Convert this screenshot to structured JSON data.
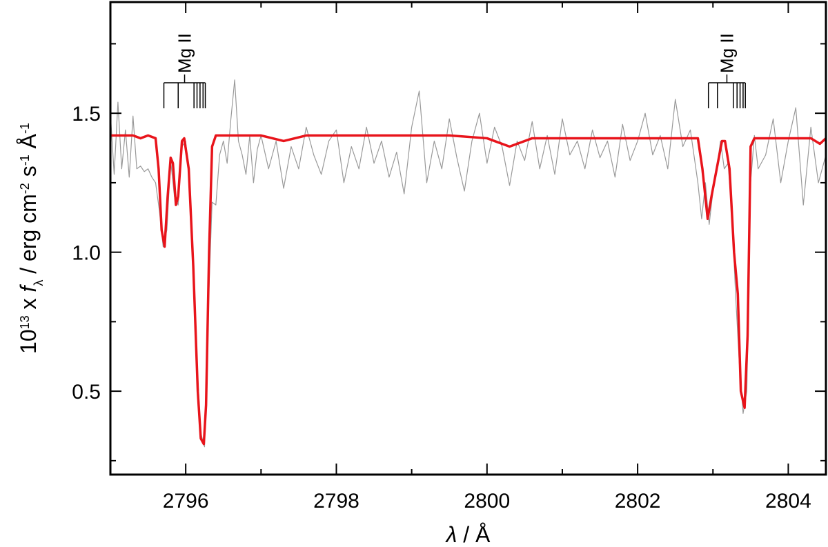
{
  "chart_data": {
    "type": "line",
    "xlabel": [
      {
        "text": "λ",
        "style": "italic"
      },
      {
        "text": " / Å",
        "style": "normal"
      }
    ],
    "ylabel": [
      {
        "text": "10",
        "style": "normal"
      },
      {
        "text": "13",
        "style": "sup"
      },
      {
        "text": " x ",
        "style": "normal"
      },
      {
        "text": "f",
        "style": "italic"
      },
      {
        "text": "λ",
        "style": "sub"
      },
      {
        "text": " / erg cm",
        "style": "normal"
      },
      {
        "text": "-2",
        "style": "sup"
      },
      {
        "text": " s",
        "style": "normal"
      },
      {
        "text": "-1",
        "style": "sup"
      },
      {
        "text": " Å",
        "style": "normal"
      },
      {
        "text": "-1",
        "style": "sup"
      }
    ],
    "xlim": [
      2795,
      2804.5
    ],
    "ylim": [
      0.2,
      1.9
    ],
    "xticks": [
      2796,
      2798,
      2800,
      2802,
      2804
    ],
    "xminorticks": [
      2795,
      2797,
      2799,
      2801,
      2803
    ],
    "yticks": [
      0.5,
      {
        "value": 1,
        "label": "1.0"
      },
      1.5
    ],
    "yminorticks": [
      0.25,
      0.75,
      1.25,
      1.75
    ],
    "series": [
      {
        "color": "#999999",
        "x": [
          2795.0,
          2795.05,
          2795.1,
          2795.15,
          2795.2,
          2795.25,
          2795.3,
          2795.35,
          2795.4,
          2795.45,
          2795.5,
          2795.55,
          2795.6,
          2795.65,
          2795.7,
          2795.75,
          2795.8,
          2795.85,
          2795.9,
          2795.95,
          2796.0,
          2796.05,
          2796.1,
          2796.15,
          2796.2,
          2796.25,
          2796.3,
          2796.35,
          2796.4,
          2796.45,
          2796.5,
          2796.55,
          2796.6,
          2796.65,
          2796.7,
          2796.75,
          2796.8,
          2796.85,
          2796.9,
          2796.95,
          2797.0,
          2797.1,
          2797.2,
          2797.3,
          2797.4,
          2797.5,
          2797.6,
          2797.7,
          2797.8,
          2797.9,
          2798.0,
          2798.1,
          2798.2,
          2798.3,
          2798.4,
          2798.5,
          2798.6,
          2798.7,
          2798.8,
          2798.9,
          2799.0,
          2799.1,
          2799.2,
          2799.3,
          2799.4,
          2799.5,
          2799.6,
          2799.7,
          2799.8,
          2799.9,
          2800.0,
          2800.1,
          2800.2,
          2800.3,
          2800.4,
          2800.5,
          2800.6,
          2800.7,
          2800.8,
          2800.9,
          2801.0,
          2801.1,
          2801.2,
          2801.3,
          2801.4,
          2801.5,
          2801.6,
          2801.7,
          2801.8,
          2801.9,
          2802.0,
          2802.1,
          2802.2,
          2802.3,
          2802.4,
          2802.5,
          2802.6,
          2802.7,
          2802.8,
          2802.85,
          2802.9,
          2802.95,
          2803.0,
          2803.05,
          2803.1,
          2803.15,
          2803.2,
          2803.25,
          2803.3,
          2803.35,
          2803.4,
          2803.45,
          2803.5,
          2803.55,
          2803.6,
          2803.7,
          2803.8,
          2803.9,
          2804.0,
          2804.1,
          2804.2,
          2804.3,
          2804.4,
          2804.5
        ],
        "values": [
          1.5,
          1.28,
          1.54,
          1.3,
          1.44,
          1.27,
          1.49,
          1.3,
          1.31,
          1.29,
          1.3,
          1.27,
          1.25,
          1.15,
          1.02,
          1.08,
          1.33,
          1.2,
          1.17,
          1.38,
          1.4,
          1.25,
          0.95,
          0.6,
          0.35,
          0.3,
          0.8,
          1.18,
          1.17,
          1.35,
          1.4,
          1.32,
          1.48,
          1.62,
          1.4,
          1.35,
          1.28,
          1.42,
          1.25,
          1.37,
          1.42,
          1.3,
          1.4,
          1.23,
          1.38,
          1.3,
          1.45,
          1.35,
          1.28,
          1.4,
          1.44,
          1.25,
          1.38,
          1.3,
          1.45,
          1.32,
          1.4,
          1.27,
          1.36,
          1.21,
          1.45,
          1.58,
          1.25,
          1.4,
          1.3,
          1.48,
          1.34,
          1.22,
          1.4,
          1.5,
          1.32,
          1.45,
          1.38,
          1.24,
          1.4,
          1.33,
          1.47,
          1.3,
          1.42,
          1.28,
          1.48,
          1.35,
          1.4,
          1.3,
          1.44,
          1.34,
          1.4,
          1.27,
          1.46,
          1.33,
          1.4,
          1.5,
          1.35,
          1.42,
          1.3,
          1.55,
          1.38,
          1.44,
          1.25,
          1.12,
          1.25,
          1.1,
          1.22,
          1.3,
          1.4,
          1.3,
          1.32,
          1.15,
          0.85,
          0.6,
          0.42,
          0.5,
          1.25,
          1.42,
          1.3,
          1.35,
          1.48,
          1.25,
          1.4,
          1.52,
          1.17,
          1.45,
          1.25,
          1.35
        ]
      },
      {
        "color": "#e8141b",
        "x": [
          2795.0,
          2795.3,
          2795.4,
          2795.5,
          2795.6,
          2795.64,
          2795.68,
          2795.72,
          2795.76,
          2795.8,
          2795.83,
          2795.87,
          2795.9,
          2795.95,
          2795.98,
          2796.04,
          2796.1,
          2796.16,
          2796.2,
          2796.24,
          2796.27,
          2796.31,
          2796.35,
          2796.4,
          2797.0,
          2797.3,
          2797.6,
          2799.5,
          2800.0,
          2800.3,
          2800.6,
          2802.8,
          2802.86,
          2802.93,
          2802.98,
          2803.05,
          2803.12,
          2803.16,
          2803.22,
          2803.28,
          2803.33,
          2803.37,
          2803.42,
          2803.46,
          2803.5,
          2803.55,
          2804.3,
          2804.42,
          2804.5
        ],
        "values": [
          1.42,
          1.42,
          1.41,
          1.42,
          1.41,
          1.3,
          1.08,
          1.02,
          1.2,
          1.34,
          1.32,
          1.17,
          1.2,
          1.4,
          1.41,
          1.3,
          0.95,
          0.5,
          0.33,
          0.31,
          0.45,
          1.0,
          1.38,
          1.42,
          1.42,
          1.4,
          1.42,
          1.42,
          1.41,
          1.38,
          1.41,
          1.41,
          1.3,
          1.12,
          1.2,
          1.3,
          1.4,
          1.4,
          1.3,
          1.0,
          0.85,
          0.5,
          0.44,
          0.7,
          1.38,
          1.41,
          1.41,
          1.39,
          1.41
        ]
      }
    ],
    "annotations": [
      {
        "text": "Mg II",
        "lines": [
          2795.71,
          2795.9,
          2796.11,
          2796.15,
          2796.19,
          2796.23,
          2796.26
        ]
      },
      {
        "text": "Mg II",
        "lines": [
          2802.94,
          2803.06,
          2803.27,
          2803.32,
          2803.36,
          2803.4,
          2803.43
        ]
      }
    ]
  }
}
